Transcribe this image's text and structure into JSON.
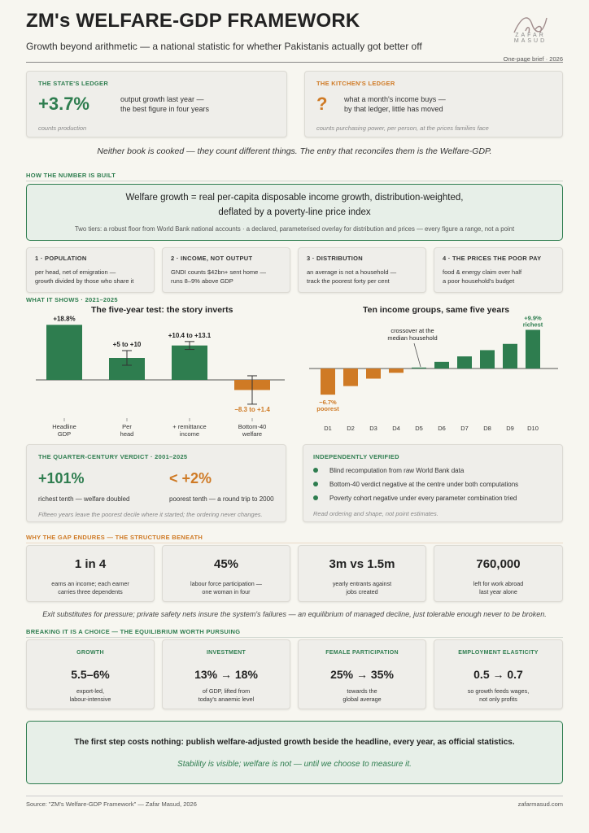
{
  "header": {
    "title": "ZM's WELFARE-GDP FRAMEWORK",
    "subtitle": "Growth beyond arithmetic — a national statistic for whether Pakistanis actually got better off",
    "logo_text": "ZAFAR MASUD",
    "brief": "One-page brief · 2026"
  },
  "ledgers": {
    "state": {
      "label": "THE STATE'S LEDGER",
      "value": "+3.7%",
      "text1": "output growth last year —",
      "text2": "the best figure in four years",
      "note": "counts production"
    },
    "kitchen": {
      "label": "THE KITCHEN'S LEDGER",
      "value": "?",
      "text1": "what a month's income buys —",
      "text2": "by that ledger, little has moved",
      "note": "counts purchasing power, per person, at the prices families face"
    },
    "reconcile": "Neither book is cooked — they count different things. The entry that reconciles them is the Welfare-GDP."
  },
  "built": {
    "section": "HOW THE NUMBER IS BUILT",
    "line1": "Welfare growth  =  real per-capita disposable income growth, distribution-weighted,",
    "line2": "deflated by a poverty-line price index",
    "tiers": "Two tiers: a robust floor from World Bank national accounts · a declared, parameterised overlay for distribution and prices — every figure a range, not a point",
    "boxes": [
      {
        "label": "1 · POPULATION",
        "l1": "per head, net of emigration —",
        "l2": "growth divided by those who share it"
      },
      {
        "label": "2 · INCOME, NOT OUTPUT",
        "l1": "GNDI counts $42bn+ sent home —",
        "l2": "runs 8–9% above GDP"
      },
      {
        "label": "3 · DISTRIBUTION",
        "l1": "an average is not a household —",
        "l2": "track the poorest forty per cent"
      },
      {
        "label": "4 · THE PRICES THE POOR PAY",
        "l1": "food & energy claim over half",
        "l2": "a poor household's budget"
      }
    ]
  },
  "shows": {
    "section": "WHAT IT SHOWS · 2021–2025"
  },
  "chart_data": [
    {
      "type": "bar",
      "title": "The five-year test: the story inverts",
      "categories": [
        "Headline GDP",
        "Per head",
        "+ remittance income",
        "Bottom-40 welfare"
      ],
      "values": [
        18.8,
        7.5,
        11.75,
        -3.45
      ],
      "ranges": [
        null,
        [
          5,
          10
        ],
        [
          10.4,
          13.1
        ],
        [
          -8.3,
          1.4
        ]
      ],
      "data_labels": [
        "+18.8%",
        "+5 to +10",
        "+10.4 to +13.1",
        "−8.3 to +1.4"
      ],
      "colors": [
        "#2e7d4f",
        "#2e7d4f",
        "#2e7d4f",
        "#cf7a25"
      ]
    },
    {
      "type": "bar",
      "title": "Ten income groups, same five years",
      "categories": [
        "D1",
        "D2",
        "D3",
        "D4",
        "D5",
        "D6",
        "D7",
        "D8",
        "D9",
        "D10"
      ],
      "values": [
        -6.7,
        -4.5,
        -2.6,
        -1.1,
        0.2,
        1.7,
        3.1,
        4.7,
        6.3,
        9.9
      ],
      "annotations": {
        "low": "−6.7%",
        "low_sub": "poorest",
        "high": "+9.9%",
        "high_sub": "richest",
        "crossover1": "crossover at the",
        "crossover2": "median household"
      }
    }
  ],
  "verdict": {
    "label": "THE QUARTER-CENTURY VERDICT · 2001–2025",
    "rich_value": "+101%",
    "rich_text": "richest tenth — welfare doubled",
    "poor_value": "< +2%",
    "poor_text": "poorest tenth — a round trip to 2000",
    "note": "Fifteen years leave the poorest decile where it started; the ordering never changes."
  },
  "verified": {
    "label": "INDEPENDENTLY VERIFIED",
    "items": [
      "Blind recomputation from raw World Bank data",
      "Bottom-40 verdict negative at the centre under both computations",
      "Poverty cohort negative under every parameter combination tried"
    ],
    "note": "Read ordering and shape, not point estimates."
  },
  "gap": {
    "section": "WHY THE GAP ENDURES — THE STRUCTURE BENEATH",
    "stats": [
      {
        "value": "1 in 4",
        "l1": "earns an income; each earner",
        "l2": "carries three dependents"
      },
      {
        "value": "45%",
        "l1": "labour force participation —",
        "l2": "one woman in four"
      },
      {
        "value": "3m vs 1.5m",
        "l1": "yearly entrants against",
        "l2": "jobs created"
      },
      {
        "value": "760,000",
        "l1": "left for work abroad",
        "l2": "last year alone"
      }
    ],
    "summary": "Exit substitutes for pressure; private safety nets insure the system's failures — an equilibrium of managed decline, just tolerable enough never to be broken."
  },
  "choice": {
    "section": "BREAKING IT IS A CHOICE — THE EQUILIBRIUM WORTH PURSUING",
    "items": [
      {
        "label": "GROWTH",
        "value": "5.5–6%",
        "l1": "export-led,",
        "l2": "labour-intensive"
      },
      {
        "label": "INVESTMENT",
        "value": "13% → 18%",
        "l1": "of GDP, lifted from",
        "l2": "today's anaemic level"
      },
      {
        "label": "FEMALE PARTICIPATION",
        "value": "25% → 35%",
        "l1": "towards the",
        "l2": "global average"
      },
      {
        "label": "EMPLOYMENT ELASTICITY",
        "value": "0.5 → 0.7",
        "l1": "so growth feeds wages,",
        "l2": "not only profits"
      }
    ]
  },
  "cta": {
    "line1": "The first step costs nothing: publish welfare-adjusted growth beside the headline, every year, as official statistics.",
    "line2": "Stability is visible; welfare is not — until we choose to measure it."
  },
  "footer": {
    "source": "Source: \"ZM's Welfare-GDP Framework\" — Zafar Masud, 2026",
    "site": "zafarmasud.com"
  },
  "colors": {
    "green": "#2e7d4f",
    "orange": "#cf7a25",
    "bg": "#f7f6f0"
  }
}
